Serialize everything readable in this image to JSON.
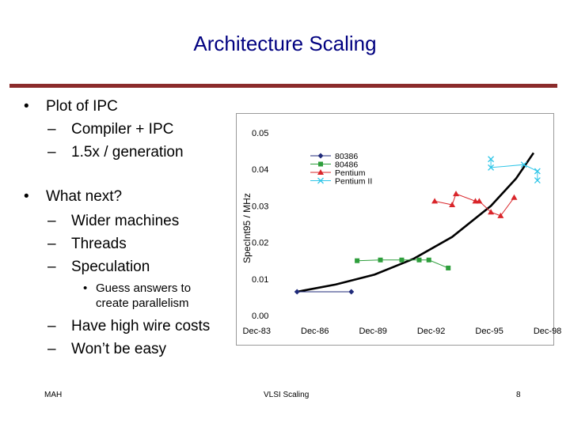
{
  "slide": {
    "title": "Architecture Scaling",
    "bullets": [
      {
        "text": "Plot of IPC",
        "subs": [
          "Compiler + IPC",
          "1.5x / generation"
        ]
      },
      {
        "text": "What next?",
        "subs": [
          "Wider machines",
          "Threads",
          "Speculation"
        ]
      }
    ],
    "sub_sub": "Guess answers to create parallelism",
    "bottom_subs": [
      "Have high wire costs",
      "Won’t be easy"
    ],
    "bullet_char": "•",
    "dash_char": "–",
    "small_bullet_char": "•"
  },
  "footer": {
    "left": "MAH",
    "center": "VLSI Scaling",
    "right": "8"
  },
  "colors": {
    "title": "#000080",
    "rule": "#8b2b2b",
    "series": [
      "#1f2a7a",
      "#2e9e3c",
      "#d9252a",
      "#30c6e8"
    ],
    "trend": "#000000"
  },
  "chart_data": {
    "type": "line",
    "ylabel": "SpecInt95 / MHz",
    "xlabel": "",
    "ylim": [
      0,
      0.05
    ],
    "yticks": [
      "0.00",
      "0.01",
      "0.02",
      "0.03",
      "0.04",
      "0.05"
    ],
    "xticks": [
      {
        "label": "Dec-83",
        "x": 1983.92
      },
      {
        "label": "Dec-86",
        "x": 1986.92
      },
      {
        "label": "Dec-89",
        "x": 1989.92
      },
      {
        "label": "Dec-92",
        "x": 1992.92
      },
      {
        "label": "Dec-95",
        "x": 1995.92
      },
      {
        "label": "Dec-98",
        "x": 1998.92
      }
    ],
    "xlim": [
      1983.5,
      1999.1
    ],
    "grid": false,
    "legend": "top-left",
    "series": [
      {
        "name": "80386",
        "marker": "diamond",
        "points": [
          [
            1986.0,
            0.0065
          ],
          [
            1988.8,
            0.0065
          ]
        ]
      },
      {
        "name": "80486",
        "marker": "square",
        "points": [
          [
            1989.1,
            0.015
          ],
          [
            1990.3,
            0.0152
          ],
          [
            1991.4,
            0.0152
          ],
          [
            1992.3,
            0.0152
          ],
          [
            1992.8,
            0.0152
          ],
          [
            1993.8,
            0.013
          ]
        ]
      },
      {
        "name": "Pentium",
        "marker": "triangle",
        "points": [
          [
            1993.1,
            0.0313
          ],
          [
            1994.0,
            0.0303
          ],
          [
            1994.2,
            0.0333
          ],
          [
            1995.2,
            0.0313
          ],
          [
            1995.4,
            0.0313
          ],
          [
            1996.0,
            0.0283
          ],
          [
            1996.5,
            0.0273
          ],
          [
            1997.2,
            0.0323
          ]
        ]
      },
      {
        "name": "Pentium II",
        "marker": "x",
        "points": [
          [
            1996.0,
            0.0428
          ],
          [
            1996.0,
            0.0405
          ],
          [
            1997.7,
            0.0413
          ],
          [
            1998.4,
            0.0395
          ],
          [
            1998.4,
            0.037
          ]
        ]
      }
    ],
    "trend": [
      [
        1986.0,
        0.0065
      ],
      [
        1988.0,
        0.0085
      ],
      [
        1990.0,
        0.0112
      ],
      [
        1992.0,
        0.0155
      ],
      [
        1994.0,
        0.0215
      ],
      [
        1996.0,
        0.03
      ],
      [
        1997.3,
        0.0375
      ],
      [
        1998.2,
        0.0445
      ]
    ]
  }
}
